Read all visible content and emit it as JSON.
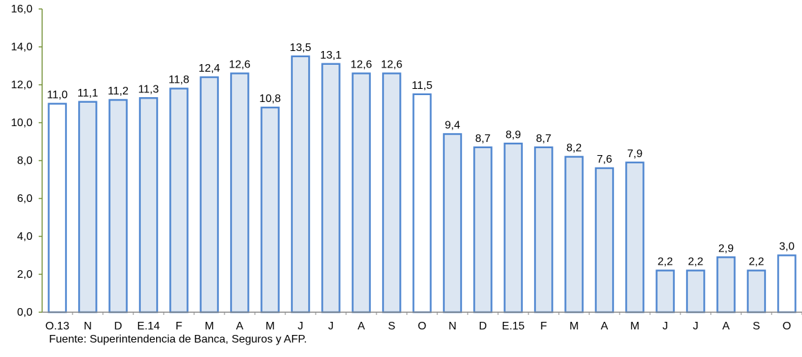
{
  "chart_data": {
    "type": "bar",
    "categories": [
      "O.13",
      "N",
      "D",
      "E.14",
      "F",
      "M",
      "A",
      "M",
      "J",
      "J",
      "A",
      "S",
      "O",
      "N",
      "D",
      "E.15",
      "F",
      "M",
      "A",
      "M",
      "J",
      "J",
      "A",
      "S",
      "O"
    ],
    "values": [
      11.0,
      11.1,
      11.2,
      11.3,
      11.8,
      12.4,
      12.6,
      10.8,
      13.5,
      13.1,
      12.6,
      12.6,
      11.5,
      9.4,
      8.7,
      8.9,
      8.7,
      8.2,
      7.6,
      7.9,
      2.2,
      2.2,
      2.9,
      2.2,
      3.0
    ],
    "data_labels": [
      "11,0",
      "11,1",
      "11,2",
      "11,3",
      "11,8",
      "12,4",
      "12,6",
      "10,8",
      "13,5",
      "13,1",
      "12,6",
      "12,6",
      "11,5",
      "9,4",
      "8,7",
      "8,9",
      "8,7",
      "8,2",
      "7,6",
      "7,9",
      "2,2",
      "2,2",
      "2,9",
      "2,2",
      "3,0"
    ],
    "highlighted": [
      true,
      false,
      false,
      false,
      false,
      false,
      false,
      false,
      false,
      false,
      false,
      false,
      true,
      false,
      false,
      false,
      false,
      false,
      false,
      false,
      false,
      false,
      false,
      false,
      true
    ],
    "ylim": [
      0,
      16
    ],
    "yticks": [
      0,
      2,
      4,
      6,
      8,
      10,
      12,
      14,
      16
    ],
    "ytick_labels": [
      "0,0",
      "2,0",
      "4,0",
      "6,0",
      "8,0",
      "10,0",
      "12,0",
      "14,0",
      "16,0"
    ],
    "title": "",
    "xlabel": "",
    "ylabel": "",
    "grid": false,
    "colors": {
      "bar_fill": "#dce6f2",
      "bar_fill_highlight": "#ffffff",
      "bar_stroke": "#4f86d0",
      "y_axis": "#77933c",
      "x_axis": "#868686"
    }
  },
  "source_note": "Fuente: Superintendencia de Banca, Seguros y AFP."
}
